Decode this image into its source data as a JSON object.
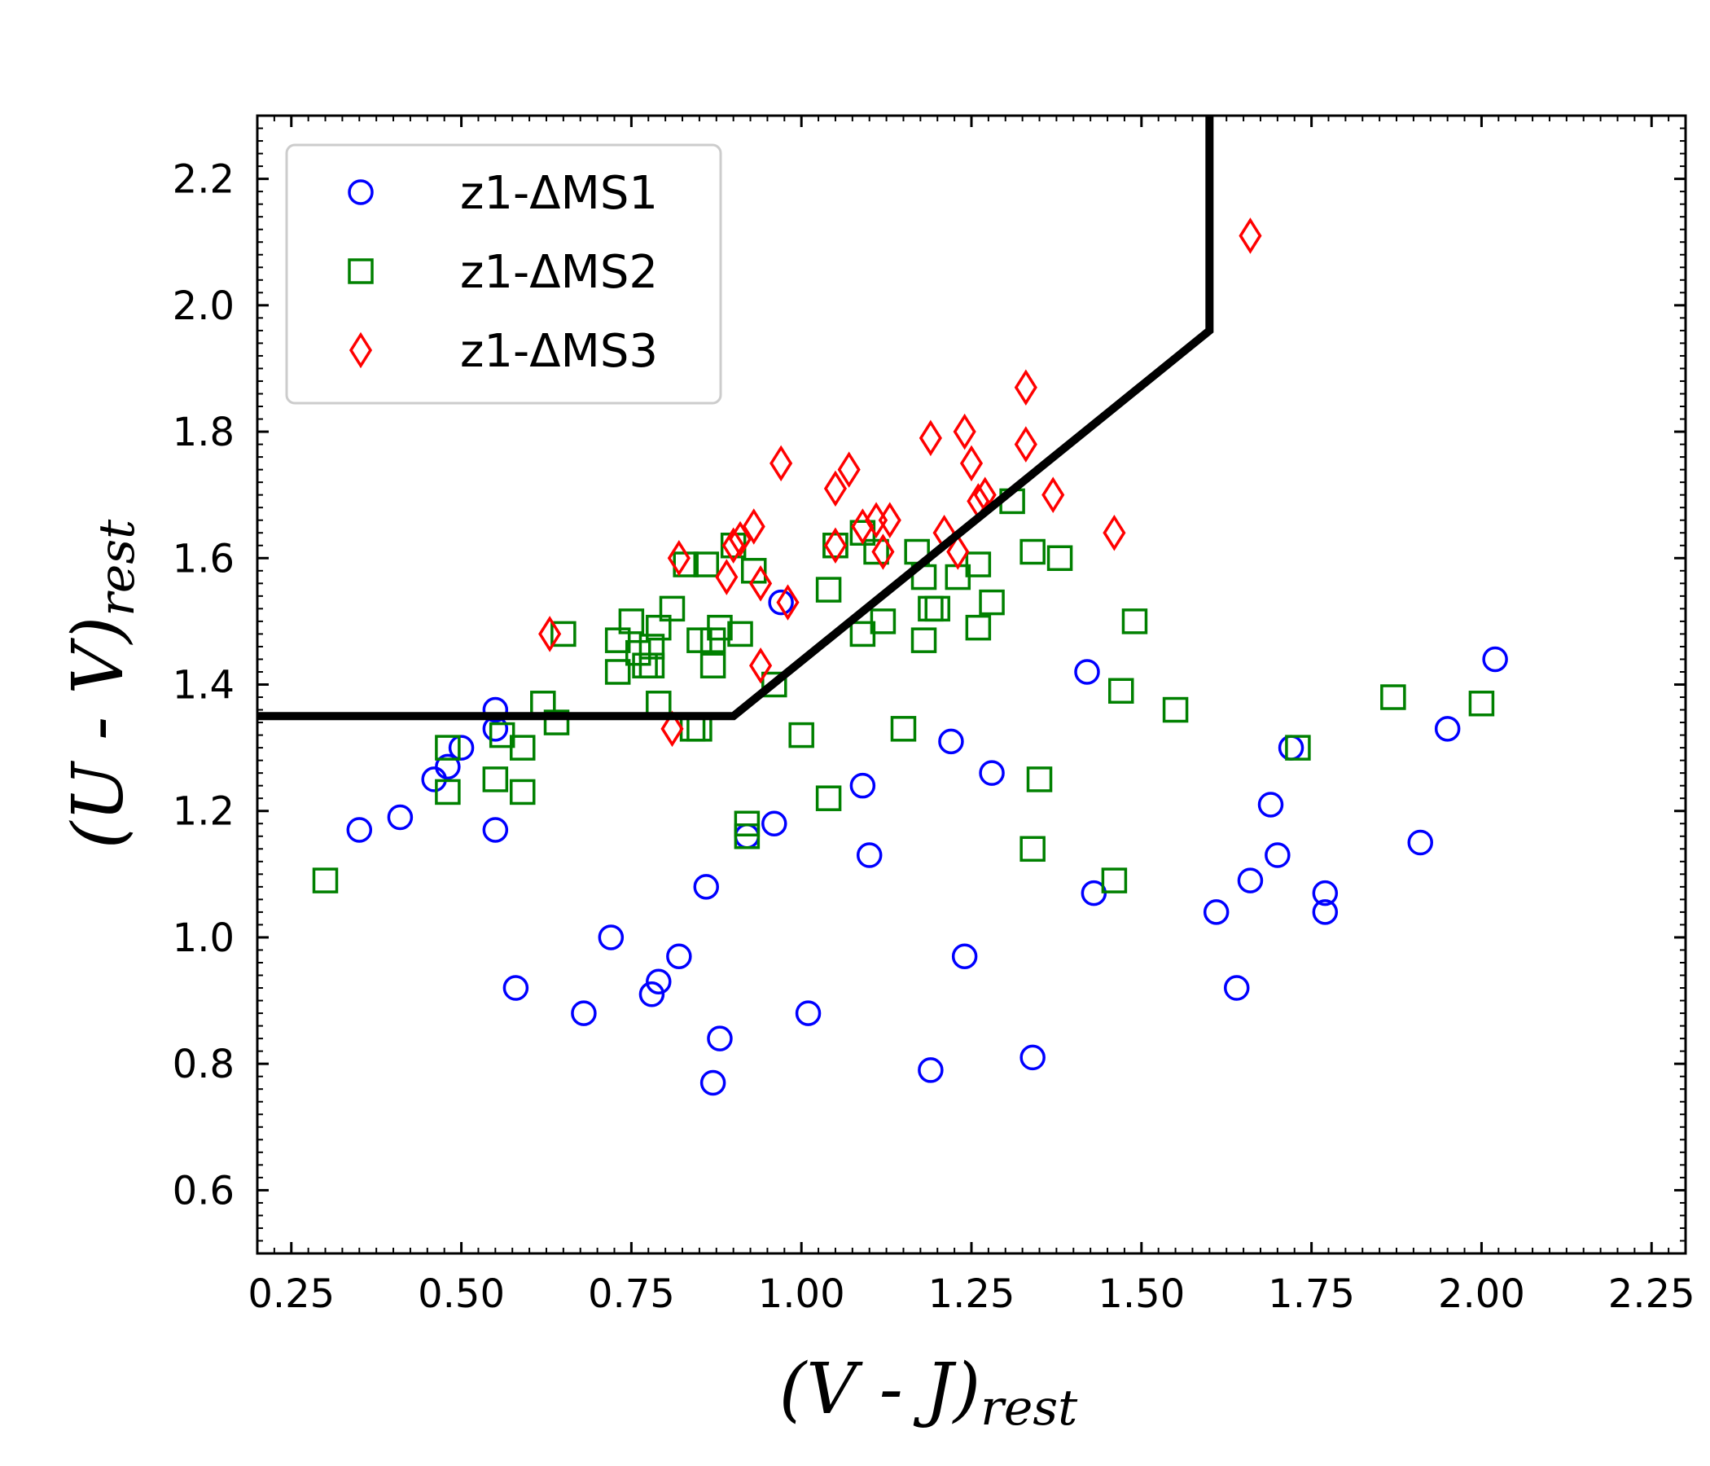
{
  "chart_data": {
    "type": "scatter",
    "xlabel": "(V - J)",
    "xlabel_sub": "rest",
    "ylabel": "(U - V)",
    "ylabel_sub": "rest",
    "xlim": [
      0.2,
      2.3
    ],
    "ylim": [
      0.5,
      2.3
    ],
    "xticks": [
      "0.25",
      "0.50",
      "0.75",
      "1.00",
      "1.25",
      "1.50",
      "1.75",
      "2.00",
      "2.25"
    ],
    "xtick_values": [
      0.25,
      0.5,
      0.75,
      1.0,
      1.25,
      1.5,
      1.75,
      2.0,
      2.25
    ],
    "yticks": [
      "0.6",
      "0.8",
      "1.0",
      "1.2",
      "1.4",
      "1.6",
      "1.8",
      "2.0",
      "2.2"
    ],
    "ytick_values": [
      0.6,
      0.8,
      1.0,
      1.2,
      1.4,
      1.6,
      1.8,
      2.0,
      2.2
    ],
    "grid": false,
    "legend_position": "top-left",
    "selection_line": {
      "color": "#000000",
      "points": [
        [
          0.2,
          1.35
        ],
        [
          0.9,
          1.35
        ],
        [
          1.6,
          1.96
        ],
        [
          1.6,
          2.3
        ]
      ]
    },
    "series": [
      {
        "name": "z1-ΔMS1",
        "marker": "circle",
        "color": "#0000ff",
        "points": [
          [
            0.35,
            1.17
          ],
          [
            0.41,
            1.19
          ],
          [
            0.46,
            1.25
          ],
          [
            0.48,
            1.27
          ],
          [
            0.5,
            1.3
          ],
          [
            0.55,
            1.36
          ],
          [
            0.55,
            1.33
          ],
          [
            0.55,
            1.17
          ],
          [
            0.58,
            0.92
          ],
          [
            0.68,
            0.88
          ],
          [
            0.72,
            1.0
          ],
          [
            0.78,
            0.91
          ],
          [
            0.79,
            0.93
          ],
          [
            0.82,
            0.97
          ],
          [
            0.86,
            1.08
          ],
          [
            0.87,
            0.77
          ],
          [
            0.88,
            0.84
          ],
          [
            0.92,
            1.16
          ],
          [
            0.96,
            1.18
          ],
          [
            0.97,
            1.53
          ],
          [
            1.01,
            0.88
          ],
          [
            1.09,
            1.24
          ],
          [
            1.1,
            1.13
          ],
          [
            1.19,
            0.79
          ],
          [
            1.22,
            1.31
          ],
          [
            1.24,
            0.97
          ],
          [
            1.28,
            1.26
          ],
          [
            1.34,
            0.81
          ],
          [
            1.42,
            1.42
          ],
          [
            1.43,
            1.07
          ],
          [
            1.61,
            1.04
          ],
          [
            1.64,
            0.92
          ],
          [
            1.66,
            1.09
          ],
          [
            1.69,
            1.21
          ],
          [
            1.7,
            1.13
          ],
          [
            1.72,
            1.3
          ],
          [
            1.77,
            1.07
          ],
          [
            1.77,
            1.04
          ],
          [
            1.91,
            1.15
          ],
          [
            1.95,
            1.33
          ],
          [
            2.02,
            1.44
          ]
        ]
      },
      {
        "name": "z1-ΔMS2",
        "marker": "square",
        "color": "#008000",
        "points": [
          [
            0.3,
            1.09
          ],
          [
            0.48,
            1.3
          ],
          [
            0.48,
            1.23
          ],
          [
            0.55,
            1.25
          ],
          [
            0.56,
            1.32
          ],
          [
            0.59,
            1.23
          ],
          [
            0.59,
            1.3
          ],
          [
            0.62,
            1.37
          ],
          [
            0.64,
            1.34
          ],
          [
            0.65,
            1.48
          ],
          [
            0.73,
            1.42
          ],
          [
            0.73,
            1.47
          ],
          [
            0.75,
            1.5
          ],
          [
            0.76,
            1.45
          ],
          [
            0.77,
            1.43
          ],
          [
            0.78,
            1.46
          ],
          [
            0.78,
            1.43
          ],
          [
            0.79,
            1.49
          ],
          [
            0.79,
            1.37
          ],
          [
            0.81,
            1.52
          ],
          [
            0.83,
            1.59
          ],
          [
            0.85,
            1.47
          ],
          [
            0.85,
            1.33
          ],
          [
            0.84,
            1.33
          ],
          [
            0.86,
            1.59
          ],
          [
            0.87,
            1.43
          ],
          [
            0.87,
            1.47
          ],
          [
            0.88,
            1.49
          ],
          [
            0.9,
            1.62
          ],
          [
            0.91,
            1.48
          ],
          [
            0.93,
            1.58
          ],
          [
            0.92,
            1.18
          ],
          [
            0.92,
            1.16
          ],
          [
            0.96,
            1.4
          ],
          [
            1.0,
            1.32
          ],
          [
            1.04,
            1.55
          ],
          [
            1.05,
            1.62
          ],
          [
            1.05,
            1.62
          ],
          [
            1.04,
            1.22
          ],
          [
            1.09,
            1.64
          ],
          [
            1.09,
            1.48
          ],
          [
            1.11,
            1.61
          ],
          [
            1.12,
            1.5
          ],
          [
            1.15,
            1.33
          ],
          [
            1.17,
            1.61
          ],
          [
            1.18,
            1.57
          ],
          [
            1.18,
            1.47
          ],
          [
            1.19,
            1.52
          ],
          [
            1.2,
            1.52
          ],
          [
            1.23,
            1.57
          ],
          [
            1.26,
            1.59
          ],
          [
            1.26,
            1.49
          ],
          [
            1.28,
            1.53
          ],
          [
            1.31,
            1.69
          ],
          [
            1.34,
            1.61
          ],
          [
            1.34,
            1.14
          ],
          [
            1.35,
            1.25
          ],
          [
            1.38,
            1.6
          ],
          [
            1.46,
            1.09
          ],
          [
            1.47,
            1.39
          ],
          [
            1.49,
            1.5
          ],
          [
            1.55,
            1.36
          ],
          [
            1.73,
            1.3
          ],
          [
            1.87,
            1.38
          ],
          [
            2.0,
            1.37
          ]
        ]
      },
      {
        "name": "z1-ΔMS3",
        "marker": "diamond",
        "color": "#ff0000",
        "points": [
          [
            0.63,
            1.48
          ],
          [
            0.81,
            1.33
          ],
          [
            0.82,
            1.6
          ],
          [
            0.89,
            1.57
          ],
          [
            0.9,
            1.62
          ],
          [
            0.91,
            1.63
          ],
          [
            0.93,
            1.65
          ],
          [
            0.94,
            1.56
          ],
          [
            0.94,
            1.43
          ],
          [
            0.97,
            1.75
          ],
          [
            0.98,
            1.53
          ],
          [
            1.05,
            1.71
          ],
          [
            1.05,
            1.62
          ],
          [
            1.07,
            1.74
          ],
          [
            1.09,
            1.65
          ],
          [
            1.11,
            1.66
          ],
          [
            1.12,
            1.61
          ],
          [
            1.13,
            1.66
          ],
          [
            1.19,
            1.79
          ],
          [
            1.21,
            1.64
          ],
          [
            1.23,
            1.61
          ],
          [
            1.24,
            1.8
          ],
          [
            1.25,
            1.75
          ],
          [
            1.26,
            1.69
          ],
          [
            1.27,
            1.7
          ],
          [
            1.33,
            1.87
          ],
          [
            1.33,
            1.78
          ],
          [
            1.37,
            1.7
          ],
          [
            1.46,
            1.64
          ],
          [
            1.66,
            2.11
          ]
        ]
      }
    ]
  }
}
